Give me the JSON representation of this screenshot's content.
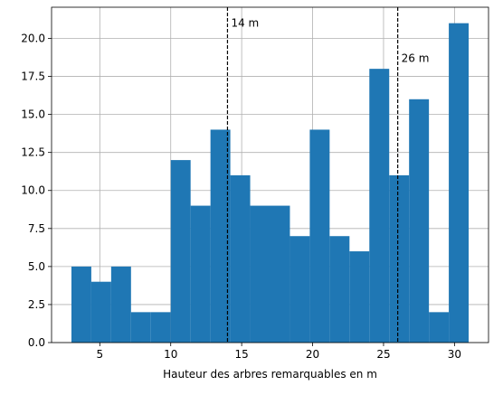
{
  "chart_data": {
    "type": "bar",
    "subtype": "histogram",
    "xlabel": "Hauteur des arbres remarquables en m",
    "ylabel": "",
    "title": "",
    "xlim": [
      1.6,
      32.4
    ],
    "ylim": [
      0,
      22.05
    ],
    "grid": true,
    "bar_color": "#1f77b4",
    "bins": [
      {
        "x0": 3.0,
        "x1": 4.4,
        "value": 5
      },
      {
        "x0": 4.4,
        "x1": 5.8,
        "value": 4
      },
      {
        "x0": 5.8,
        "x1": 7.2,
        "value": 5
      },
      {
        "x0": 7.2,
        "x1": 8.6,
        "value": 2
      },
      {
        "x0": 8.6,
        "x1": 10.0,
        "value": 2
      },
      {
        "x0": 10.0,
        "x1": 11.4,
        "value": 12
      },
      {
        "x0": 11.4,
        "x1": 12.8,
        "value": 9
      },
      {
        "x0": 12.8,
        "x1": 14.2,
        "value": 14
      },
      {
        "x0": 14.2,
        "x1": 15.6,
        "value": 11
      },
      {
        "x0": 15.6,
        "x1": 17.0,
        "value": 9
      },
      {
        "x0": 17.0,
        "x1": 18.4,
        "value": 9
      },
      {
        "x0": 18.4,
        "x1": 19.8,
        "value": 7
      },
      {
        "x0": 19.8,
        "x1": 21.2,
        "value": 14
      },
      {
        "x0": 21.2,
        "x1": 22.6,
        "value": 7
      },
      {
        "x0": 22.6,
        "x1": 24.0,
        "value": 6
      },
      {
        "x0": 24.0,
        "x1": 25.4,
        "value": 18
      },
      {
        "x0": 25.4,
        "x1": 26.8,
        "value": 11
      },
      {
        "x0": 26.8,
        "x1": 28.2,
        "value": 16
      },
      {
        "x0": 28.2,
        "x1": 29.6,
        "value": 2
      },
      {
        "x0": 29.6,
        "x1": 31.0,
        "value": 21
      }
    ],
    "xticks": [
      5,
      10,
      15,
      20,
      25,
      30
    ],
    "xtick_labels": [
      "5",
      "10",
      "15",
      "20",
      "25",
      "30"
    ],
    "yticks": [
      0,
      2.5,
      5,
      7.5,
      10,
      12.5,
      15,
      17.5,
      20
    ],
    "ytick_labels": [
      "0.0",
      "2.5",
      "5.0",
      "7.5",
      "10.0",
      "12.5",
      "15.0",
      "17.5",
      "20.0"
    ],
    "annotations": [
      {
        "x": 14,
        "label": "14 m",
        "label_y": 21.0
      },
      {
        "x": 26,
        "label": "26 m",
        "label_y": 18.7
      }
    ]
  }
}
